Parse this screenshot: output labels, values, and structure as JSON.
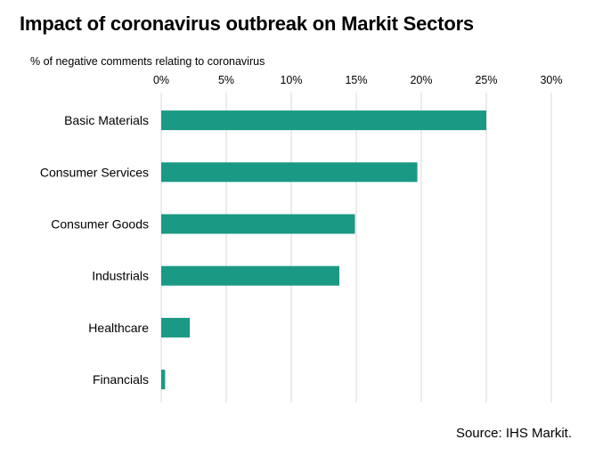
{
  "title": "Impact of coronavirus outbreak on Markit Sectors",
  "source": "Source: IHS Markit.",
  "colors": {
    "bar": "#1a9a85",
    "gridline": "#d9d9d9",
    "text": "#000000"
  },
  "chart_data": {
    "type": "bar",
    "orientation": "horizontal",
    "title": "Impact of coronavirus outbreak on Markit Sectors",
    "xlabel": "% of negative comments relating to coronavirus",
    "ylabel": "",
    "xlim": [
      0,
      30
    ],
    "x_ticks": [
      0,
      5,
      10,
      15,
      20,
      25,
      30
    ],
    "x_tick_labels": [
      "0%",
      "5%",
      "10%",
      "15%",
      "20%",
      "25%",
      "30%"
    ],
    "x_axis_position": "top",
    "grid": "vertical",
    "categories": [
      "Basic Materials",
      "Consumer Services",
      "Consumer Goods",
      "Industrials",
      "Healthcare",
      "Financials"
    ],
    "values": [
      25.0,
      19.7,
      14.9,
      13.7,
      2.2,
      0.3
    ]
  }
}
